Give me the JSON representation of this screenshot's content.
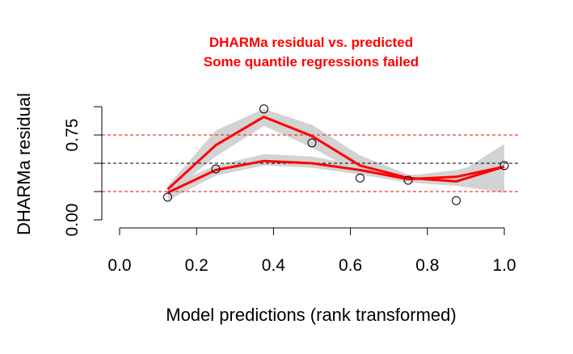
{
  "chart_data": {
    "type": "scatter",
    "title": "DHARMa residual vs. predicted",
    "subtitle": "Some quantile regressions failed",
    "xlabel": "Model predictions (rank transformed)",
    "ylabel": "DHARMa residual",
    "xlim": [
      0,
      1
    ],
    "ylim": [
      0,
      1
    ],
    "x_ticks": [
      "0.0",
      "0.2",
      "0.4",
      "0.6",
      "0.8",
      "1.0"
    ],
    "y_ticks": [
      "0.00",
      "0.75"
    ],
    "grid": false,
    "reference_lines": [
      0.25,
      0.5,
      0.75
    ],
    "points": {
      "x": [
        0.125,
        0.25,
        0.375,
        0.5,
        0.625,
        0.75,
        0.875,
        1.0
      ],
      "y": [
        0.2,
        0.45,
        0.98,
        0.68,
        0.37,
        0.35,
        0.17,
        0.48
      ]
    },
    "series": [
      {
        "x": [
          0.125,
          0.25,
          0.375,
          0.5,
          0.625,
          0.75,
          0.875,
          1.0
        ],
        "values": [
          0.24,
          0.44,
          0.52,
          0.5,
          0.44,
          0.36,
          0.38,
          0.47
        ],
        "band_lower": [
          0.17,
          0.39,
          0.48,
          0.46,
          0.4,
          0.33,
          0.33,
          0.39
        ],
        "band_upper": [
          0.3,
          0.48,
          0.58,
          0.56,
          0.48,
          0.39,
          0.44,
          0.54
        ]
      },
      {
        "x": [
          0.125,
          0.25,
          0.375,
          0.5,
          0.625,
          0.75,
          0.875,
          1.0
        ],
        "values": [
          0.27,
          0.66,
          0.91,
          0.74,
          0.48,
          0.37,
          0.34,
          0.47
        ],
        "band_lower": [
          0.22,
          0.56,
          0.83,
          0.64,
          0.4,
          0.33,
          0.3,
          0.24
        ],
        "band_upper": [
          0.3,
          0.79,
          0.98,
          0.84,
          0.57,
          0.4,
          0.4,
          0.67
        ]
      }
    ],
    "colors": {
      "title": "#ff0000",
      "fit_line": "#ff0000",
      "band": "#d3d3d3",
      "quantile_line": "#ff0000",
      "median_line": "#000000",
      "points": "#000000"
    }
  }
}
